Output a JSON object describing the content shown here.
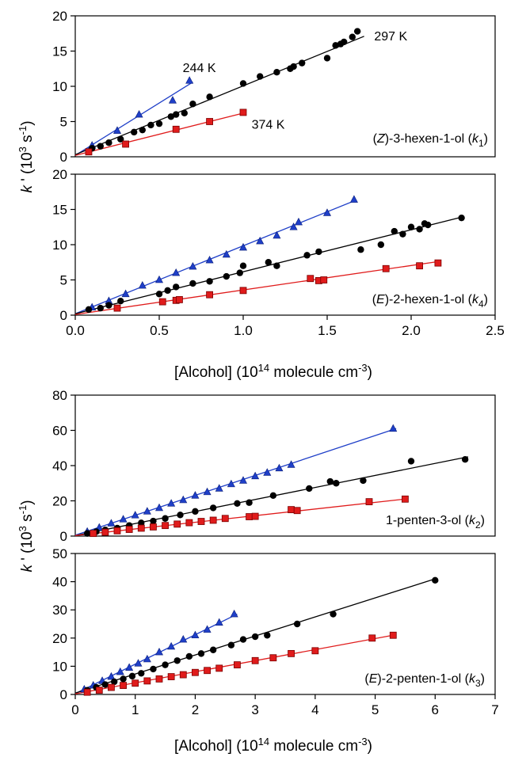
{
  "chart_data": [
    {
      "type": "scatter",
      "panel": "Z-3-hexen-1-ol",
      "xlim": [
        0,
        2.5
      ],
      "ylim": [
        0,
        20
      ],
      "yticks": [
        "0",
        "5",
        "10",
        "15",
        "20"
      ],
      "label_parts": [
        "(",
        "Z",
        ")-3-hexen-1-ol (",
        "k",
        "1",
        ")"
      ],
      "annotations": [
        {
          "text": "244 K",
          "x": 0.64,
          "y": 12.0
        },
        {
          "text": "297 K",
          "x": 1.78,
          "y": 16.5
        },
        {
          "text": "374 K",
          "x": 1.05,
          "y": 4.0
        }
      ],
      "series": [
        {
          "temp": "244 K",
          "color": "#1f3fc8",
          "marker": "triangle",
          "x": [
            0.1,
            0.25,
            0.38,
            0.58,
            0.68
          ],
          "y": [
            1.6,
            3.7,
            6.0,
            8.0,
            10.8
          ],
          "fit": [
            [
              0,
              0.2
            ],
            [
              0.7,
              10.6
            ]
          ]
        },
        {
          "temp": "297 K",
          "color": "#000000",
          "marker": "circle",
          "x": [
            0.1,
            0.15,
            0.2,
            0.27,
            0.35,
            0.4,
            0.45,
            0.5,
            0.57,
            0.6,
            0.65,
            0.7,
            0.8,
            1.0,
            1.1,
            1.2,
            1.28,
            1.3,
            1.35,
            1.5,
            1.55,
            1.58,
            1.6,
            1.65,
            1.68
          ],
          "y": [
            1.2,
            1.5,
            2.0,
            2.5,
            3.5,
            3.8,
            4.5,
            4.7,
            5.7,
            6.0,
            6.2,
            7.5,
            8.5,
            10.4,
            11.4,
            12.0,
            12.5,
            12.8,
            13.3,
            14.0,
            15.8,
            16.0,
            16.3,
            17.0,
            17.8
          ],
          "fit": [
            [
              0,
              0.3
            ],
            [
              1.72,
              17.1
            ]
          ]
        },
        {
          "temp": "374 K",
          "color": "#e01b1b",
          "marker": "square",
          "x": [
            0.08,
            0.3,
            0.6,
            0.8,
            1.0
          ],
          "y": [
            0.7,
            1.8,
            3.9,
            5.0,
            6.3
          ],
          "fit": [
            [
              0,
              0.2
            ],
            [
              1.0,
              6.2
            ]
          ]
        }
      ]
    },
    {
      "type": "scatter",
      "panel": "E-2-hexen-1-ol",
      "xlim": [
        0,
        2.5
      ],
      "ylim": [
        0,
        20
      ],
      "yticks": [
        "0",
        "5",
        "10",
        "15",
        "20"
      ],
      "xticks": [
        "0.0",
        "0.5",
        "1.0",
        "1.5",
        "2.0",
        "2.5"
      ],
      "label_parts": [
        "(",
        "E",
        ")-2-hexen-1-ol (",
        "k",
        "4",
        ")"
      ],
      "series": [
        {
          "temp": "244 K",
          "color": "#1f3fc8",
          "marker": "triangle",
          "x": [
            0.1,
            0.2,
            0.3,
            0.4,
            0.5,
            0.6,
            0.7,
            0.8,
            0.9,
            1.0,
            1.1,
            1.2,
            1.3,
            1.33,
            1.5,
            1.66
          ],
          "y": [
            1.1,
            2.0,
            3.0,
            4.2,
            5.0,
            6.0,
            6.9,
            7.8,
            8.6,
            9.6,
            10.5,
            11.3,
            12.5,
            13.2,
            14.5,
            16.4
          ],
          "fit": [
            [
              0,
              0.2
            ],
            [
              1.67,
              16.3
            ]
          ]
        },
        {
          "temp": "297 K",
          "color": "#000000",
          "marker": "circle",
          "x": [
            0.08,
            0.15,
            0.2,
            0.27,
            0.5,
            0.55,
            0.6,
            0.7,
            0.8,
            0.9,
            0.98,
            1.0,
            1.15,
            1.2,
            1.38,
            1.45,
            1.7,
            1.82,
            1.9,
            1.95,
            2.0,
            2.05,
            2.08,
            2.1,
            2.3
          ],
          "y": [
            0.8,
            1.0,
            1.4,
            2.0,
            3.0,
            3.5,
            4.0,
            4.5,
            4.8,
            5.5,
            6.0,
            7.0,
            7.5,
            7.0,
            8.5,
            9.0,
            9.3,
            10.0,
            11.9,
            11.5,
            12.5,
            12.2,
            13.0,
            12.8,
            13.8
          ],
          "fit": [
            [
              0,
              0.2
            ],
            [
              2.3,
              13.9
            ]
          ]
        },
        {
          "temp": "374 K",
          "color": "#e01b1b",
          "marker": "square",
          "x": [
            0.25,
            0.52,
            0.6,
            0.62,
            0.8,
            1.0,
            1.4,
            1.45,
            1.48,
            1.85,
            2.05,
            2.16
          ],
          "y": [
            1.0,
            1.9,
            2.1,
            2.2,
            2.9,
            3.5,
            5.2,
            4.9,
            5.0,
            6.6,
            7.0,
            7.4
          ],
          "fit": [
            [
              0,
              0.1
            ],
            [
              2.16,
              7.6
            ]
          ]
        }
      ]
    },
    {
      "type": "scatter",
      "panel": "1-penten-3-ol",
      "xlim": [
        0,
        7
      ],
      "ylim": [
        0,
        80
      ],
      "yticks": [
        "0",
        "20",
        "40",
        "60",
        "80"
      ],
      "label_parts": [
        "1-penten-3-ol (",
        "k",
        "2",
        ")"
      ],
      "series": [
        {
          "temp": "244 K",
          "color": "#1f3fc8",
          "marker": "triangle",
          "x": [
            0.2,
            0.4,
            0.6,
            0.8,
            1.0,
            1.2,
            1.4,
            1.6,
            1.8,
            2.0,
            2.2,
            2.4,
            2.6,
            2.8,
            3.0,
            3.2,
            3.4,
            3.6,
            5.3
          ],
          "y": [
            2.5,
            4.8,
            7.2,
            9.5,
            11.8,
            14.0,
            16.0,
            18.5,
            20.5,
            23.0,
            25.0,
            27.0,
            29.5,
            31.5,
            34.0,
            36.0,
            38.5,
            40.5,
            61.0
          ],
          "fit": [
            [
              0,
              0.5
            ],
            [
              5.35,
              61.0
            ]
          ]
        },
        {
          "temp": "297 K",
          "color": "#000000",
          "marker": "circle",
          "x": [
            0.2,
            0.35,
            0.5,
            0.7,
            0.9,
            1.1,
            1.3,
            1.5,
            1.75,
            2.0,
            2.3,
            2.7,
            2.9,
            3.3,
            3.9,
            4.25,
            4.35,
            4.8,
            5.6,
            6.5
          ],
          "y": [
            1.5,
            2.5,
            3.5,
            4.5,
            6.0,
            7.5,
            8.5,
            10.0,
            12.0,
            14.0,
            16.0,
            18.5,
            19.0,
            23.0,
            27.0,
            31.0,
            30.0,
            31.5,
            42.5,
            43.5
          ],
          "fit": [
            [
              0,
              0.3
            ],
            [
              6.55,
              45.0
            ]
          ]
        },
        {
          "temp": "374 K",
          "color": "#e01b1b",
          "marker": "square",
          "x": [
            0.3,
            0.5,
            0.7,
            0.9,
            1.1,
            1.3,
            1.5,
            1.7,
            1.9,
            2.1,
            2.3,
            2.5,
            2.9,
            3.0,
            3.6,
            3.7,
            4.9,
            5.5
          ],
          "y": [
            1.5,
            2.2,
            3.0,
            3.8,
            4.5,
            5.2,
            6.0,
            6.8,
            7.6,
            8.3,
            9.0,
            10.0,
            11.0,
            11.2,
            15.0,
            14.5,
            19.5,
            21.0
          ],
          "fit": [
            [
              0,
              0.3
            ],
            [
              5.55,
              21.2
            ]
          ]
        }
      ]
    },
    {
      "type": "scatter",
      "panel": "E-2-penten-1-ol",
      "xlim": [
        0,
        7
      ],
      "ylim": [
        0,
        50
      ],
      "yticks": [
        "0",
        "10",
        "20",
        "30",
        "40",
        "50"
      ],
      "xticks": [
        "0",
        "1",
        "2",
        "3",
        "4",
        "5",
        "6",
        "7"
      ],
      "label_parts": [
        "(",
        "E",
        ")-2-penten-1-ol (",
        "k",
        "3",
        ")"
      ],
      "series": [
        {
          "temp": "244 K",
          "color": "#1f3fc8",
          "marker": "triangle",
          "x": [
            0.15,
            0.3,
            0.45,
            0.6,
            0.75,
            0.9,
            1.05,
            1.2,
            1.4,
            1.6,
            1.8,
            2.0,
            2.2,
            2.4,
            2.65
          ],
          "y": [
            1.8,
            3.2,
            4.8,
            6.3,
            8.0,
            9.5,
            11.0,
            12.5,
            15.0,
            17.0,
            19.5,
            21.0,
            23.0,
            25.5,
            28.5
          ],
          "fit": [
            [
              0,
              0.3
            ],
            [
              2.7,
              28.5
            ]
          ]
        },
        {
          "temp": "297 K",
          "color": "#000000",
          "marker": "circle",
          "x": [
            0.2,
            0.35,
            0.5,
            0.65,
            0.8,
            0.95,
            1.1,
            1.3,
            1.5,
            1.7,
            1.9,
            2.1,
            2.3,
            2.6,
            2.8,
            3.0,
            3.2,
            3.7,
            4.3,
            6.0
          ],
          "y": [
            1.5,
            2.5,
            3.5,
            4.5,
            5.5,
            6.5,
            7.5,
            9.0,
            10.5,
            12.0,
            13.5,
            14.5,
            15.8,
            17.5,
            19.5,
            20.5,
            21.0,
            25.0,
            28.5,
            40.5
          ],
          "fit": [
            [
              0,
              0.5
            ],
            [
              6.0,
              41.0
            ]
          ]
        },
        {
          "temp": "374 K",
          "color": "#e01b1b",
          "marker": "square",
          "x": [
            0.2,
            0.4,
            0.6,
            0.8,
            1.0,
            1.2,
            1.4,
            1.6,
            1.8,
            2.0,
            2.2,
            2.4,
            2.7,
            3.0,
            3.3,
            3.6,
            4.0,
            4.95,
            5.3
          ],
          "y": [
            0.8,
            1.5,
            2.5,
            3.2,
            4.0,
            4.8,
            5.5,
            6.3,
            7.0,
            7.8,
            8.5,
            9.3,
            10.5,
            12.0,
            13.0,
            14.5,
            15.5,
            20.0,
            21.0
          ],
          "fit": [
            [
              0,
              0.2
            ],
            [
              5.35,
              21.2
            ]
          ]
        }
      ]
    }
  ],
  "labels": {
    "x_axis_title": {
      "main": "[Alcohol] (10",
      "sup": "14",
      "mid": " molecule cm",
      "sup2": "-3",
      "end": ")"
    },
    "y_axis_title": {
      "k": "k",
      "rest": " ' (10",
      "sup": "3",
      "mid": " s",
      "sup2": "-1",
      "end": ")"
    }
  }
}
